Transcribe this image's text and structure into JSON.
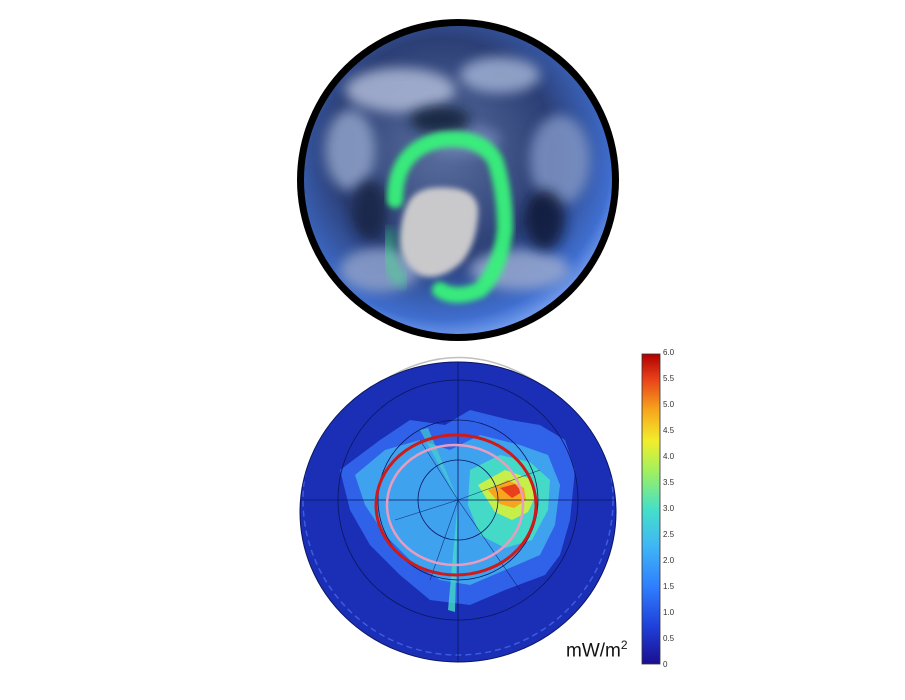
{
  "images": {
    "globe": {
      "subject": "earth-from-space-with-aurora-ring"
    },
    "aurora_map": {
      "subject": "polar-contour-map-of-auroral-power"
    }
  },
  "colorbar": {
    "ticks": [
      "6.0",
      "5.5",
      "5.0",
      "4.5",
      "4.0",
      "3.5",
      "3.0",
      "2.5",
      "2.0",
      "1.5",
      "1.0",
      "0.5",
      "0"
    ],
    "unit_base": "mW/m",
    "unit_exp": "2",
    "colors": [
      "#1a0f8f",
      "#1f3fd9",
      "#2f7fff",
      "#3fb6f5",
      "#45e0c8",
      "#9ff060",
      "#f2ee2b",
      "#f7a51c",
      "#e8401a",
      "#b00000"
    ]
  },
  "accent": {
    "aurora_green": "#39f27a",
    "ring_red": "#d01a1a",
    "ring_pink": "#e89cc0"
  }
}
